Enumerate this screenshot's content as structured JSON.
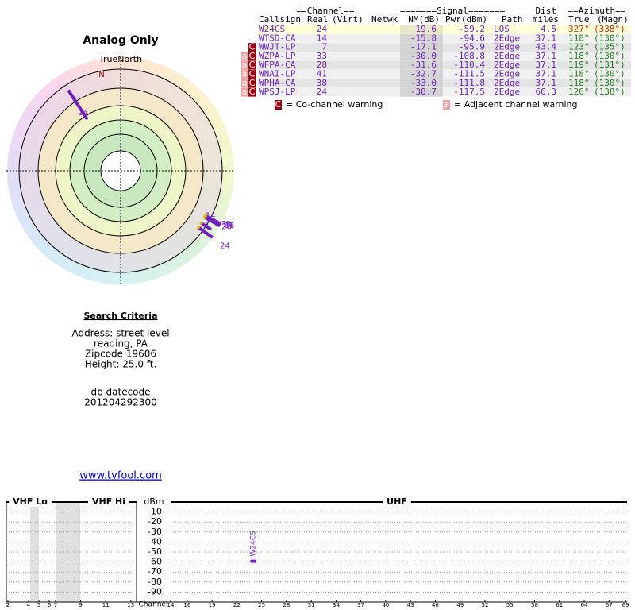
{
  "polar": {
    "title": "Analog Only",
    "north_label": "TrueNorth",
    "n": "N"
  },
  "table": {
    "header_groups": [
      "==Channel==",
      "=======Signal=======",
      "Dist",
      "==Azimuth=="
    ],
    "columns": [
      "Callsign",
      "Real",
      "(Virt)",
      "Netwk",
      "NM(dB)",
      "Pwr(dBm)",
      "Path",
      "miles",
      "True",
      "(Magn)"
    ],
    "rows": [
      {
        "callsign": "W24CS",
        "real": "24",
        "nm": "19.6",
        "pwr": "-59.2",
        "path": "LOS",
        "dist": "4.5",
        "true": "327°",
        "magn": "(338°)",
        "co": false,
        "adj": false
      },
      {
        "callsign": "WTSD-CA",
        "real": "14",
        "nm": "-15.8",
        "pwr": "-94.6",
        "path": "2Edge",
        "dist": "37.1",
        "true": "118°",
        "magn": "(130°)",
        "co": false,
        "adj": false
      },
      {
        "callsign": "WWJT-LP",
        "real": "7",
        "nm": "-17.1",
        "pwr": "-95.9",
        "path": "2Edge",
        "dist": "43.4",
        "true": "123°",
        "magn": "(135°)",
        "co": true,
        "adj": false
      },
      {
        "callsign": "WZPA-LP",
        "real": "33",
        "nm": "-30.0",
        "pwr": "-108.8",
        "path": "2Edge",
        "dist": "37.1",
        "true": "118°",
        "magn": "(130°)",
        "co": true,
        "adj": true
      },
      {
        "callsign": "WFPA-CA",
        "real": "28",
        "nm": "-31.6",
        "pwr": "-110.4",
        "path": "2Edge",
        "dist": "37.1",
        "true": "119°",
        "magn": "(131°)",
        "co": true,
        "adj": true
      },
      {
        "callsign": "WNAI-LP",
        "real": "41",
        "nm": "-32.7",
        "pwr": "-111.5",
        "path": "2Edge",
        "dist": "37.1",
        "true": "118°",
        "magn": "(130°)",
        "co": true,
        "adj": true
      },
      {
        "callsign": "WPHA-CA",
        "real": "38",
        "nm": "-33.0",
        "pwr": "-111.8",
        "path": "2Edge",
        "dist": "37.1",
        "true": "118°",
        "magn": "(130°)",
        "co": true,
        "adj": true
      },
      {
        "callsign": "WPSJ-LP",
        "real": "24",
        "nm": "-38.7",
        "pwr": "-117.5",
        "path": "2Edge",
        "dist": "66.3",
        "true": "126°",
        "magn": "(138°)",
        "co": true,
        "adj": true
      }
    ]
  },
  "legend": {
    "co_mark": "C",
    "co_text": "= Co-channel warning",
    "adj_mark": "a",
    "adj_text": "= Adjacent channel warning"
  },
  "search": {
    "title": "Search Criteria",
    "lines": [
      "Address: street level",
      "reading, PA",
      "Zipcode 19606",
      "Height: 25.0 ft."
    ],
    "datecode_label": "db datecode",
    "datecode": "201204292300",
    "link": "www.tvfool.com"
  },
  "spectrum": {
    "bands": [
      "VHF Lo",
      "VHF Hi",
      "UHF"
    ],
    "y_label": "dBm",
    "ylim": [
      -100,
      0
    ],
    "yticks": [
      -10,
      -20,
      -30,
      -40,
      -50,
      -60,
      -70,
      -80,
      -90
    ],
    "x_label": "Channel",
    "xticks": [
      2,
      4,
      5,
      6,
      7,
      9,
      11,
      13,
      14,
      16,
      19,
      22,
      25,
      28,
      31,
      34,
      37,
      40,
      43,
      46,
      49,
      52,
      55,
      58,
      61,
      64,
      67,
      69
    ]
  }
}
